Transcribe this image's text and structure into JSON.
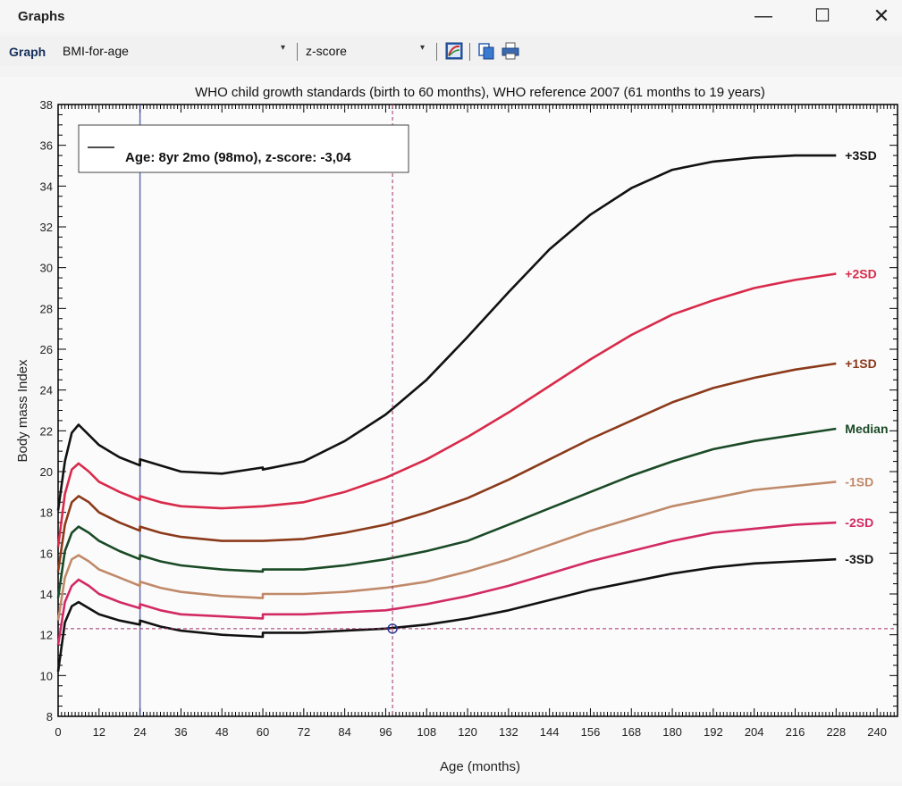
{
  "window": {
    "title": "Graphs",
    "controls": {
      "minimize": "—",
      "maximize": "☐",
      "close": "✕"
    }
  },
  "toolbar": {
    "label": "Graph",
    "graph_select": {
      "value": "BMI-for-age"
    },
    "mode_select": {
      "value": "z-score"
    },
    "icons": [
      "chart-edit-icon",
      "copy-icon",
      "print-icon"
    ]
  },
  "chart_data": {
    "type": "line",
    "title": "WHO child growth standards (birth to 60 months), WHO reference 2007 (61 months to 19 years)",
    "xlabel": "Age (months)",
    "ylabel": "Body mass Index",
    "xlim": [
      0,
      246
    ],
    "ylim": [
      8,
      38
    ],
    "xticks": [
      0,
      12,
      24,
      36,
      48,
      60,
      72,
      84,
      96,
      108,
      120,
      132,
      144,
      156,
      168,
      180,
      192,
      204,
      216,
      228,
      240
    ],
    "yticks": [
      8,
      10,
      12,
      14,
      16,
      18,
      20,
      22,
      24,
      26,
      28,
      30,
      32,
      34,
      36,
      38
    ],
    "legend": {
      "placement": "top-left",
      "label": "Age: 8yr 2mo (98mo), z-score: -3,04"
    },
    "marker": {
      "age_months": 98,
      "bmi": 12.3,
      "z_score": -3.04
    },
    "series": [
      {
        "name": "+3SD",
        "color": "#111111",
        "points": [
          [
            0,
            18.1
          ],
          [
            2,
            20.5
          ],
          [
            4,
            21.9
          ],
          [
            6,
            22.3
          ],
          [
            9,
            21.8
          ],
          [
            12,
            21.3
          ],
          [
            18,
            20.7
          ],
          [
            24,
            20.3
          ],
          [
            24,
            20.6
          ],
          [
            30,
            20.3
          ],
          [
            36,
            20.0
          ],
          [
            48,
            19.9
          ],
          [
            60,
            20.2
          ],
          [
            60,
            20.1
          ],
          [
            72,
            20.5
          ],
          [
            84,
            21.5
          ],
          [
            96,
            22.8
          ],
          [
            108,
            24.5
          ],
          [
            120,
            26.6
          ],
          [
            132,
            28.8
          ],
          [
            144,
            30.9
          ],
          [
            156,
            32.6
          ],
          [
            168,
            33.9
          ],
          [
            180,
            34.8
          ],
          [
            192,
            35.2
          ],
          [
            204,
            35.4
          ],
          [
            216,
            35.5
          ],
          [
            228,
            35.5
          ]
        ]
      },
      {
        "name": "+2SD",
        "color": "#d82a4a",
        "points": [
          [
            0,
            16.3
          ],
          [
            2,
            18.9
          ],
          [
            4,
            20.1
          ],
          [
            6,
            20.4
          ],
          [
            9,
            20.0
          ],
          [
            12,
            19.5
          ],
          [
            18,
            19.0
          ],
          [
            24,
            18.6
          ],
          [
            24,
            18.8
          ],
          [
            30,
            18.5
          ],
          [
            36,
            18.3
          ],
          [
            48,
            18.2
          ],
          [
            60,
            18.3
          ],
          [
            60,
            18.3
          ],
          [
            72,
            18.5
          ],
          [
            84,
            19.0
          ],
          [
            96,
            19.7
          ],
          [
            108,
            20.6
          ],
          [
            120,
            21.7
          ],
          [
            132,
            22.9
          ],
          [
            144,
            24.2
          ],
          [
            156,
            25.5
          ],
          [
            168,
            26.7
          ],
          [
            180,
            27.7
          ],
          [
            192,
            28.4
          ],
          [
            204,
            29.0
          ],
          [
            216,
            29.4
          ],
          [
            228,
            29.7
          ]
        ]
      },
      {
        "name": "+1SD",
        "color": "#8b3a1a",
        "points": [
          [
            0,
            15.1
          ],
          [
            2,
            17.4
          ],
          [
            4,
            18.5
          ],
          [
            6,
            18.8
          ],
          [
            9,
            18.5
          ],
          [
            12,
            18.0
          ],
          [
            18,
            17.5
          ],
          [
            24,
            17.1
          ],
          [
            24,
            17.3
          ],
          [
            30,
            17.0
          ],
          [
            36,
            16.8
          ],
          [
            48,
            16.6
          ],
          [
            60,
            16.6
          ],
          [
            60,
            16.6
          ],
          [
            72,
            16.7
          ],
          [
            84,
            17.0
          ],
          [
            96,
            17.4
          ],
          [
            108,
            18.0
          ],
          [
            120,
            18.7
          ],
          [
            132,
            19.6
          ],
          [
            144,
            20.6
          ],
          [
            156,
            21.6
          ],
          [
            168,
            22.5
          ],
          [
            180,
            23.4
          ],
          [
            192,
            24.1
          ],
          [
            204,
            24.6
          ],
          [
            216,
            25.0
          ],
          [
            228,
            25.3
          ]
        ]
      },
      {
        "name": "Median",
        "color": "#1a4a26",
        "points": [
          [
            0,
            13.8
          ],
          [
            2,
            16.1
          ],
          [
            4,
            17.0
          ],
          [
            6,
            17.3
          ],
          [
            9,
            17.0
          ],
          [
            12,
            16.6
          ],
          [
            18,
            16.1
          ],
          [
            24,
            15.7
          ],
          [
            24,
            15.9
          ],
          [
            30,
            15.6
          ],
          [
            36,
            15.4
          ],
          [
            48,
            15.2
          ],
          [
            60,
            15.1
          ],
          [
            60,
            15.2
          ],
          [
            72,
            15.2
          ],
          [
            84,
            15.4
          ],
          [
            96,
            15.7
          ],
          [
            108,
            16.1
          ],
          [
            120,
            16.6
          ],
          [
            132,
            17.4
          ],
          [
            144,
            18.2
          ],
          [
            156,
            19.0
          ],
          [
            168,
            19.8
          ],
          [
            180,
            20.5
          ],
          [
            192,
            21.1
          ],
          [
            204,
            21.5
          ],
          [
            216,
            21.8
          ],
          [
            228,
            22.1
          ]
        ]
      },
      {
        "name": "-1SD",
        "color": "#c08a6a",
        "points": [
          [
            0,
            12.7
          ],
          [
            2,
            14.8
          ],
          [
            4,
            15.7
          ],
          [
            6,
            15.9
          ],
          [
            9,
            15.6
          ],
          [
            12,
            15.2
          ],
          [
            18,
            14.8
          ],
          [
            24,
            14.4
          ],
          [
            24,
            14.6
          ],
          [
            30,
            14.3
          ],
          [
            36,
            14.1
          ],
          [
            48,
            13.9
          ],
          [
            60,
            13.8
          ],
          [
            60,
            14.0
          ],
          [
            72,
            14.0
          ],
          [
            84,
            14.1
          ],
          [
            96,
            14.3
          ],
          [
            108,
            14.6
          ],
          [
            120,
            15.1
          ],
          [
            132,
            15.7
          ],
          [
            144,
            16.4
          ],
          [
            156,
            17.1
          ],
          [
            168,
            17.7
          ],
          [
            180,
            18.3
          ],
          [
            192,
            18.7
          ],
          [
            204,
            19.1
          ],
          [
            216,
            19.3
          ],
          [
            228,
            19.5
          ]
        ]
      },
      {
        "name": "-2SD",
        "color": "#d22a64",
        "points": [
          [
            0,
            11.5
          ],
          [
            2,
            13.6
          ],
          [
            4,
            14.4
          ],
          [
            6,
            14.7
          ],
          [
            9,
            14.4
          ],
          [
            12,
            14.0
          ],
          [
            18,
            13.6
          ],
          [
            24,
            13.3
          ],
          [
            24,
            13.5
          ],
          [
            30,
            13.2
          ],
          [
            36,
            13.0
          ],
          [
            48,
            12.9
          ],
          [
            60,
            12.8
          ],
          [
            60,
            13.0
          ],
          [
            72,
            13.0
          ],
          [
            84,
            13.1
          ],
          [
            96,
            13.2
          ],
          [
            108,
            13.5
          ],
          [
            120,
            13.9
          ],
          [
            132,
            14.4
          ],
          [
            144,
            15.0
          ],
          [
            156,
            15.6
          ],
          [
            168,
            16.1
          ],
          [
            180,
            16.6
          ],
          [
            192,
            17.0
          ],
          [
            204,
            17.2
          ],
          [
            216,
            17.4
          ],
          [
            228,
            17.5
          ]
        ]
      },
      {
        "name": "-3SD",
        "color": "#111111",
        "points": [
          [
            0,
            10.2
          ],
          [
            2,
            12.6
          ],
          [
            4,
            13.4
          ],
          [
            6,
            13.6
          ],
          [
            9,
            13.3
          ],
          [
            12,
            13.0
          ],
          [
            18,
            12.7
          ],
          [
            24,
            12.5
          ],
          [
            24,
            12.7
          ],
          [
            30,
            12.4
          ],
          [
            36,
            12.2
          ],
          [
            48,
            12.0
          ],
          [
            60,
            11.9
          ],
          [
            60,
            12.1
          ],
          [
            72,
            12.1
          ],
          [
            84,
            12.2
          ],
          [
            96,
            12.3
          ],
          [
            108,
            12.5
          ],
          [
            120,
            12.8
          ],
          [
            132,
            13.2
          ],
          [
            144,
            13.7
          ],
          [
            156,
            14.2
          ],
          [
            168,
            14.6
          ],
          [
            180,
            15.0
          ],
          [
            192,
            15.3
          ],
          [
            204,
            15.5
          ],
          [
            216,
            15.6
          ],
          [
            228,
            15.7
          ]
        ]
      }
    ]
  }
}
